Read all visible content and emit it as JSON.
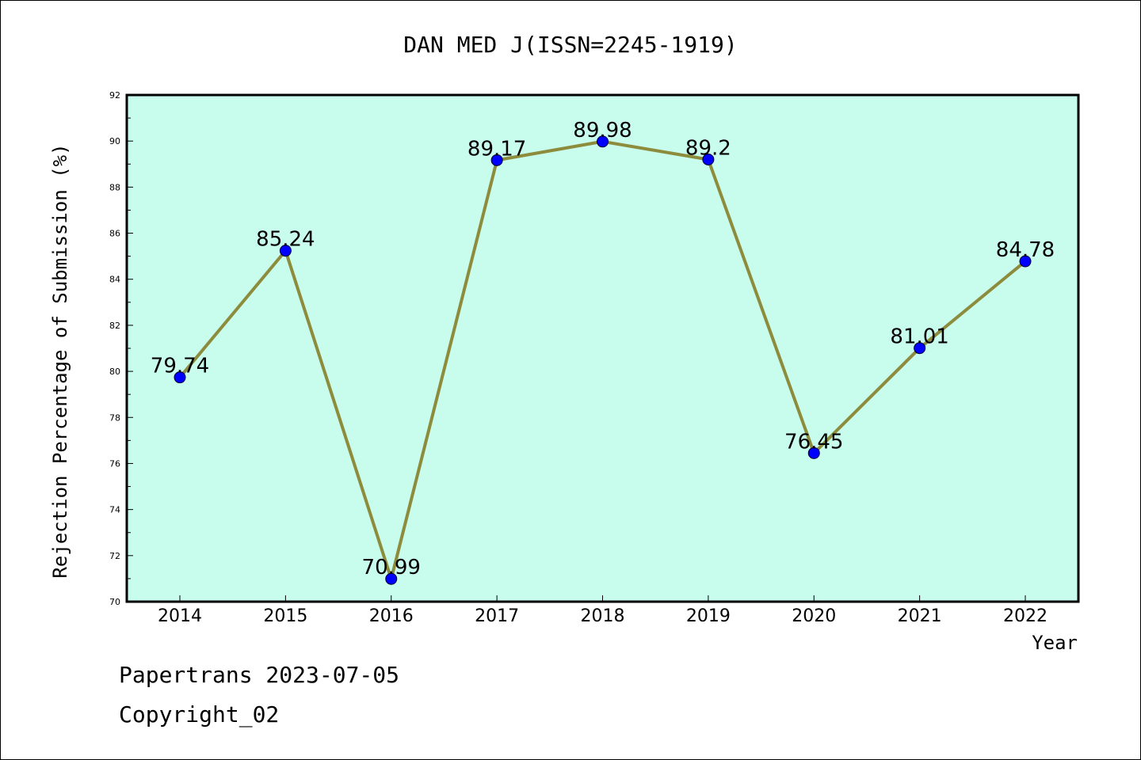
{
  "chart_data": {
    "type": "line",
    "title": "DAN MED J(ISSN=2245-1919)",
    "xlabel": "Year",
    "ylabel": "Rejection Percentage of Submission (%)",
    "categories": [
      "2014",
      "2015",
      "2016",
      "2017",
      "2018",
      "2019",
      "2020",
      "2021",
      "2022"
    ],
    "series": [
      {
        "values": [
          79.74,
          85.24,
          70.99,
          89.17,
          89.98,
          89.2,
          76.45,
          81.01,
          84.78
        ],
        "data_labels": [
          "79.74",
          "85.24",
          "70.99",
          "89.17",
          "89.98",
          "89.2",
          "76.45",
          "81.01",
          "84.78"
        ]
      }
    ],
    "ylim": [
      70,
      92
    ],
    "yticks": [
      "70",
      "72",
      "74",
      "76",
      "78",
      "80",
      "82",
      "84",
      "86",
      "88",
      "90",
      "92"
    ],
    "grid": false,
    "legend": "none",
    "colors": {
      "plot_background": "#c8fcec",
      "line": "#8c8c3c",
      "marker": "#0000ff"
    }
  },
  "footer": {
    "line1": "Papertrans 2023-07-05",
    "line2": "Copyright_02"
  }
}
